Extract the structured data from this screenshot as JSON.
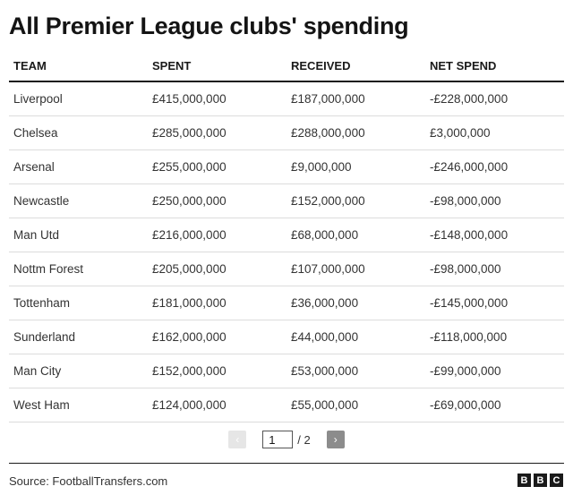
{
  "title": "All Premier League clubs' spending",
  "columns": [
    "TEAM",
    "SPENT",
    "RECEIVED",
    "NET SPEND"
  ],
  "rows": [
    [
      "Liverpool",
      "£415,000,000",
      "£187,000,000",
      "-£228,000,000"
    ],
    [
      "Chelsea",
      "£285,000,000",
      "£288,000,000",
      "£3,000,000"
    ],
    [
      "Arsenal",
      "£255,000,000",
      "£9,000,000",
      "-£246,000,000"
    ],
    [
      "Newcastle",
      "£250,000,000",
      "£152,000,000",
      "-£98,000,000"
    ],
    [
      "Man Utd",
      "£216,000,000",
      "£68,000,000",
      "-£148,000,000"
    ],
    [
      "Nottm Forest",
      "£205,000,000",
      "£107,000,000",
      "-£98,000,000"
    ],
    [
      "Tottenham",
      "£181,000,000",
      "£36,000,000",
      "-£145,000,000"
    ],
    [
      "Sunderland",
      "£162,000,000",
      "£44,000,000",
      "-£118,000,000"
    ],
    [
      "Man City",
      "£152,000,000",
      "£53,000,000",
      "-£99,000,000"
    ],
    [
      "West Ham",
      "£124,000,000",
      "£55,000,000",
      "-£69,000,000"
    ]
  ],
  "pagination": {
    "prev_icon": "chevron-left-icon",
    "next_icon": "chevron-right-icon",
    "prev_glyph": "‹",
    "next_glyph": "›",
    "current_page": "1",
    "total_label": "/ 2"
  },
  "source": "Source: FootballTransfers.com",
  "logo": [
    "B",
    "B",
    "C"
  ]
}
